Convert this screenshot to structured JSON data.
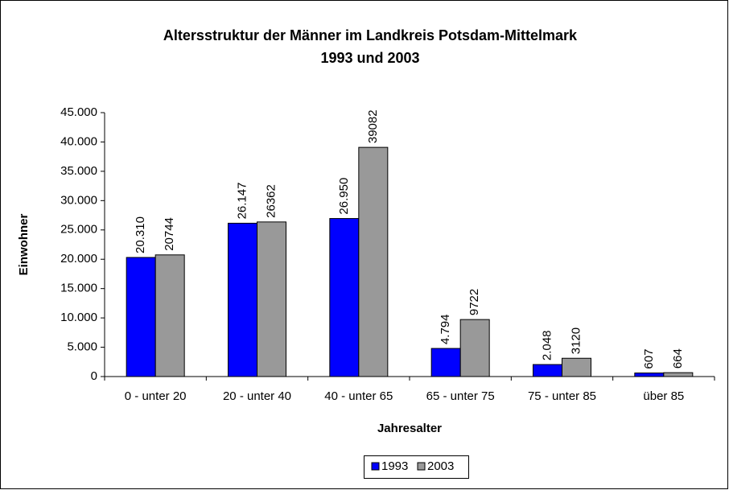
{
  "chart_data": {
    "type": "bar",
    "title": "Altersstruktur der Männer im Landkreis Potsdam-Mittelmark",
    "subtitle": "1993 und 2003",
    "x_label": "Jahresalter",
    "y_label": "Einwohner",
    "categories": [
      "0 - unter 20",
      "20 - unter 40",
      "40 - unter 65",
      "65 - unter 75",
      "75 - unter 85",
      "über 85"
    ],
    "series": [
      {
        "name": "1993",
        "color": "#0000ff",
        "values": [
          20310,
          26147,
          26950,
          4794,
          2048,
          607
        ],
        "value_labels": [
          "20.310",
          "26.147",
          "26.950",
          "4.794",
          "2.048",
          "607"
        ]
      },
      {
        "name": "2003",
        "color": "#999999",
        "values": [
          20744,
          26362,
          39082,
          9722,
          3120,
          664
        ]
      }
    ],
    "ylim": [
      0,
      45000
    ],
    "yticks": [
      0,
      {
        "value": 5000,
        "label": "5.000"
      },
      {
        "value": 10000,
        "label": "10.000"
      },
      {
        "value": 15000,
        "label": "15.000"
      },
      {
        "value": 20000,
        "label": "20.000"
      },
      {
        "value": 25000,
        "label": "25.000"
      },
      {
        "value": 30000,
        "label": "30.000"
      },
      {
        "value": 35000,
        "label": "35.000"
      },
      {
        "value": 40000,
        "label": "40.000"
      },
      {
        "value": 45000,
        "label": "45.000"
      }
    ],
    "legend": "bottom"
  }
}
